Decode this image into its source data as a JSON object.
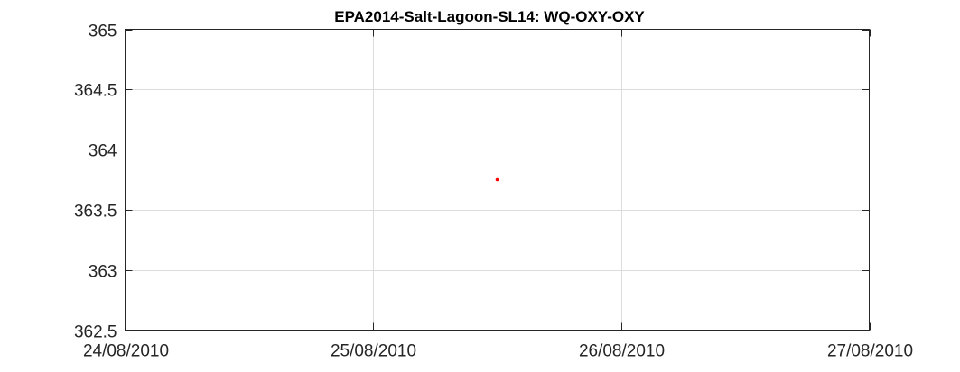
{
  "chart_data": {
    "type": "scatter",
    "title": "EPA2014-Salt-Lagoon-SL14: WQ-OXY-OXY",
    "xlabel": "",
    "ylabel": "",
    "x_scale": "date",
    "xlim": [
      "24/08/2010",
      "27/08/2010"
    ],
    "ylim": [
      362.5,
      365
    ],
    "x_ticks": [
      "24/08/2010",
      "25/08/2010",
      "26/08/2010",
      "27/08/2010"
    ],
    "y_ticks": [
      362.5,
      363,
      363.5,
      364,
      364.5,
      365
    ],
    "y_tick_labels": [
      "362.5",
      "363",
      "363.5",
      "364",
      "364.5",
      "365"
    ],
    "grid": true,
    "series": [
      {
        "color": "#ff0000",
        "x": [
          "25/08/2010 12:00"
        ],
        "y": [
          363.75
        ]
      }
    ]
  }
}
